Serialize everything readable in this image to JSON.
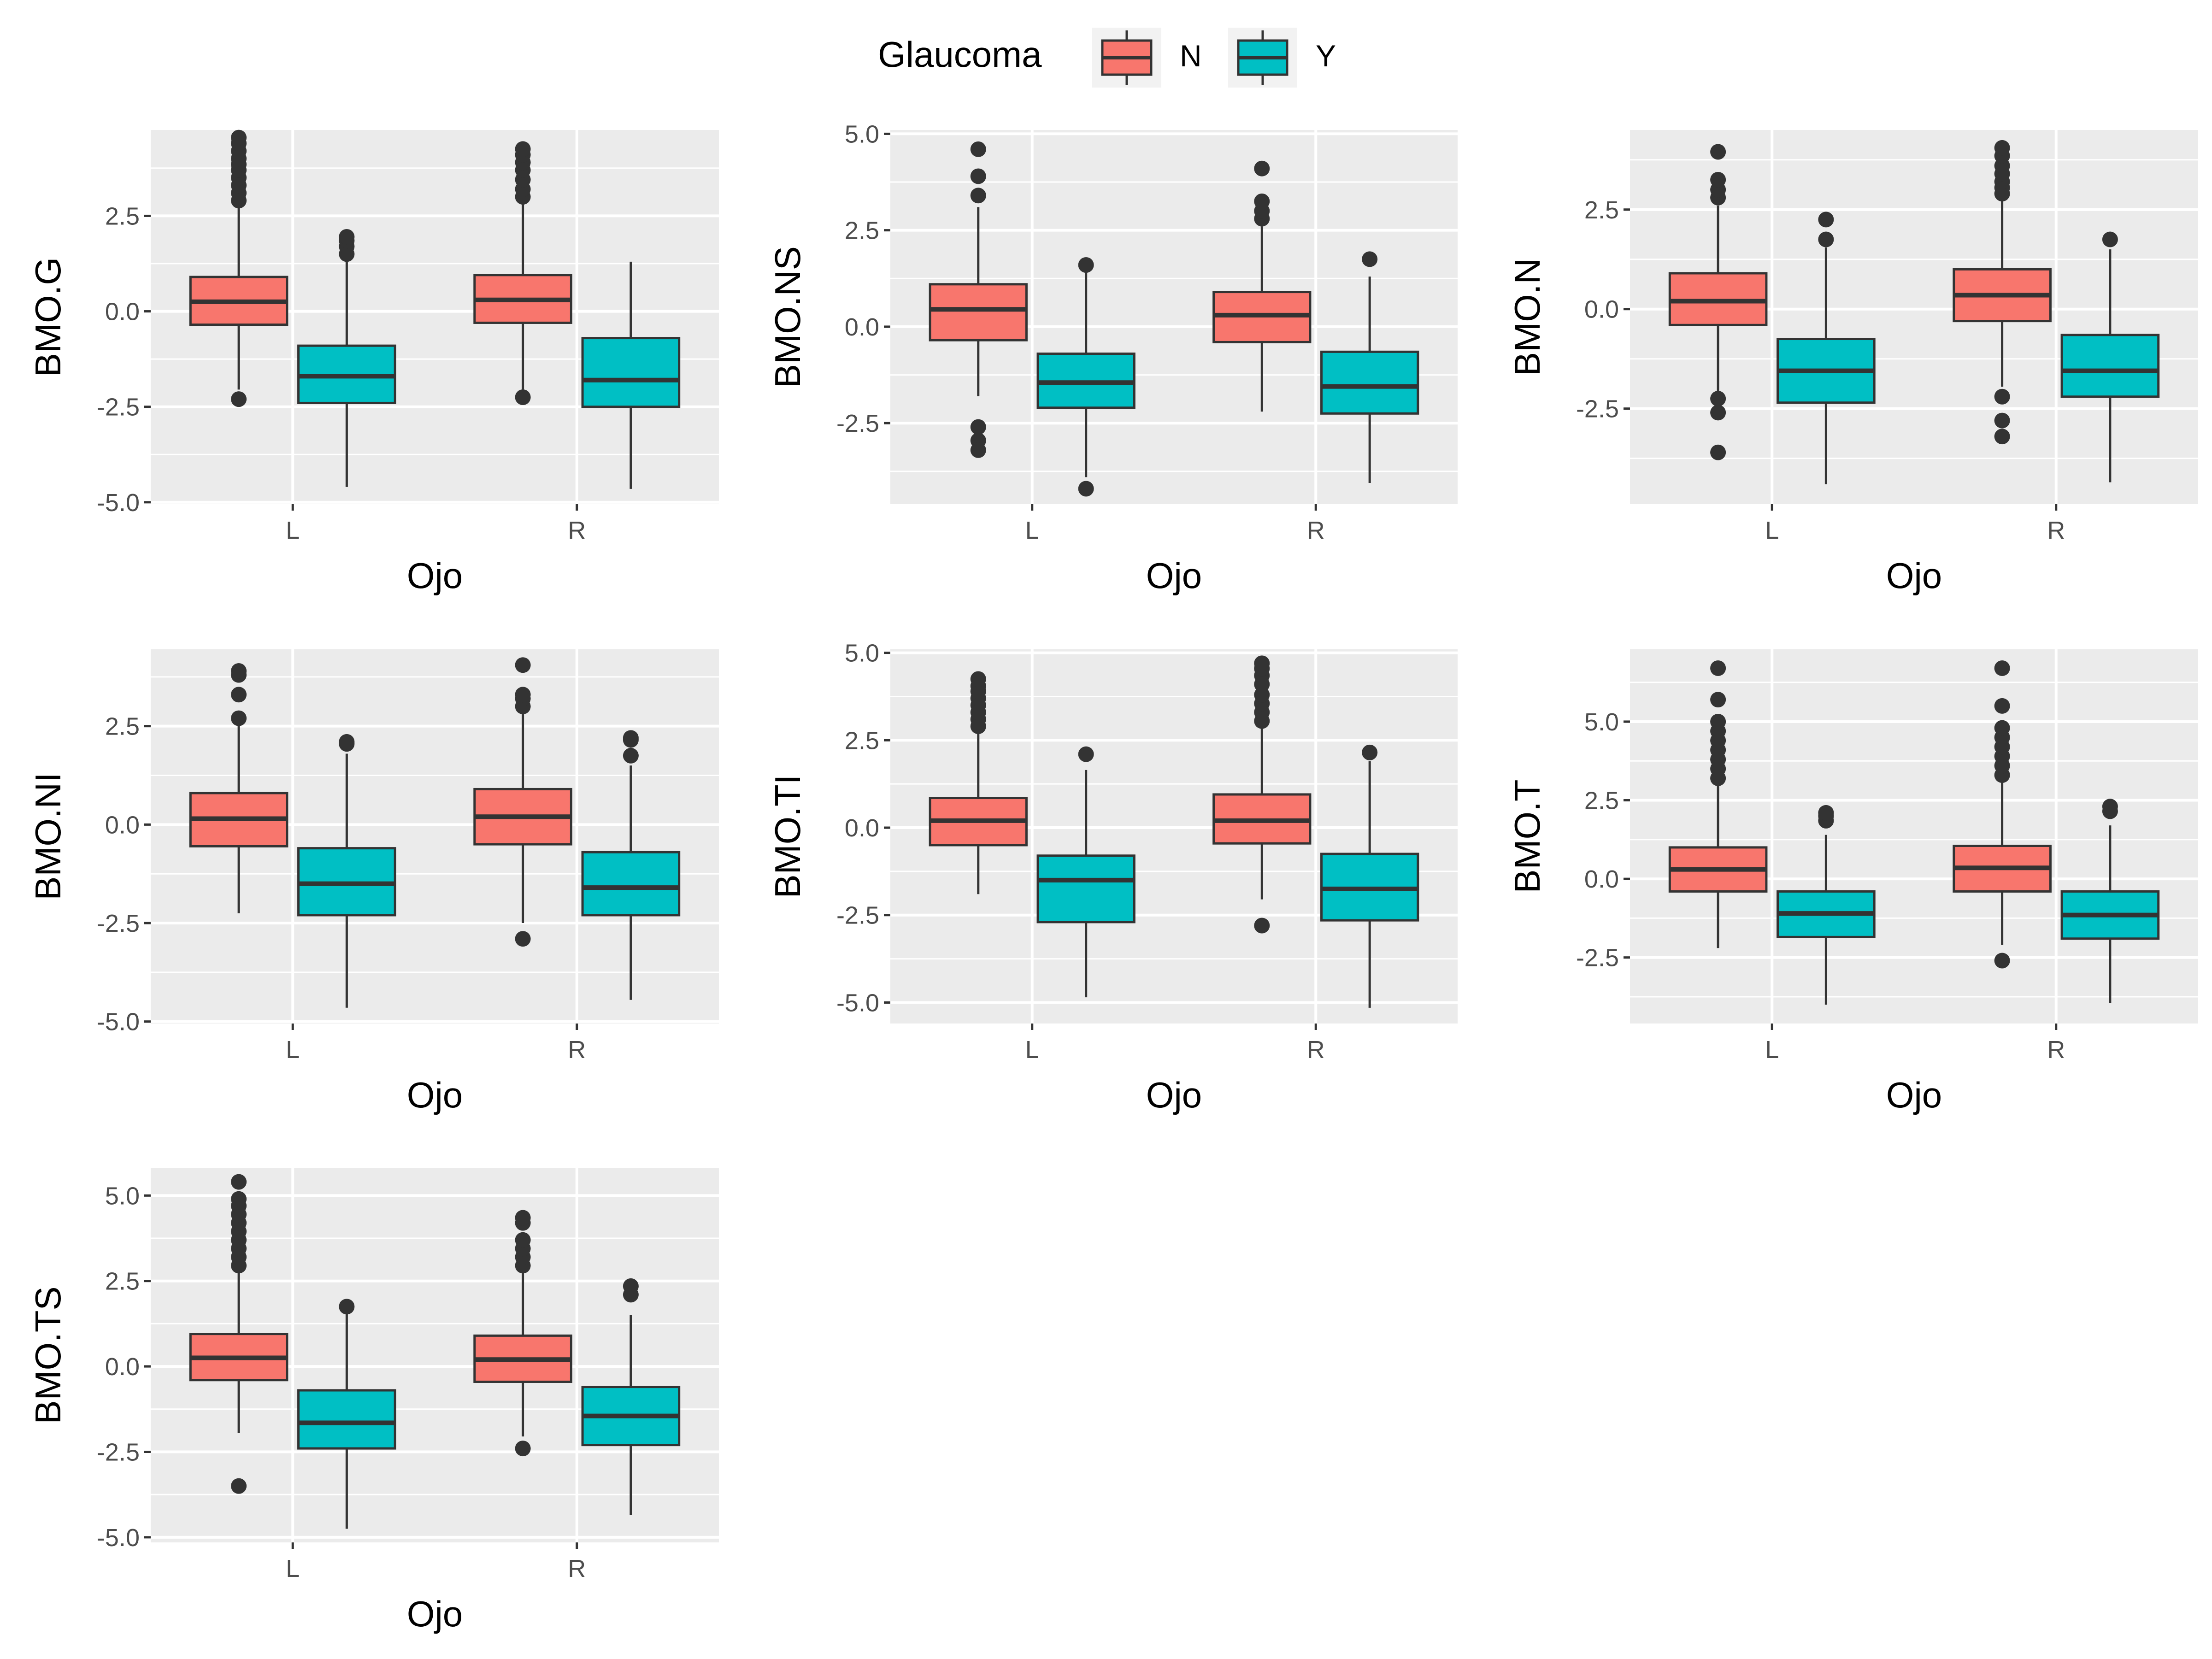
{
  "legend": {
    "title": "Glaucoma",
    "items": [
      {
        "label": "N",
        "color": "#F8766D"
      },
      {
        "label": "Y",
        "color": "#00BFC4"
      }
    ]
  },
  "chart_data": [
    {
      "type": "box",
      "ylabel": "BMO.G",
      "xlabel": "Ojo",
      "categories": [
        "L",
        "R"
      ],
      "yticks": [
        -5.0,
        -2.5,
        0.0,
        2.5
      ],
      "ylim": [
        -5.05,
        4.75
      ],
      "boxes": [
        {
          "category": "L",
          "group": "N",
          "q1": -0.35,
          "median": 0.25,
          "q3": 0.9,
          "whisker_low": -2.05,
          "whisker_high": 2.8,
          "outliers": [
            -2.3,
            2.9,
            3.1,
            3.3,
            3.5,
            3.7,
            3.85,
            4.0,
            4.2,
            4.4,
            4.55
          ]
        },
        {
          "category": "L",
          "group": "Y",
          "q1": -2.4,
          "median": -1.7,
          "q3": -0.9,
          "whisker_low": -4.6,
          "whisker_high": 1.3,
          "outliers": [
            1.5,
            1.7,
            1.85,
            1.95
          ]
        },
        {
          "category": "R",
          "group": "N",
          "q1": -0.3,
          "median": 0.3,
          "q3": 0.95,
          "whisker_low": -2.05,
          "whisker_high": 2.85,
          "outliers": [
            -2.25,
            3.0,
            3.2,
            3.45,
            3.7,
            3.9,
            4.1,
            4.25
          ]
        },
        {
          "category": "R",
          "group": "Y",
          "q1": -2.5,
          "median": -1.8,
          "q3": -0.7,
          "whisker_low": -4.65,
          "whisker_high": 1.3,
          "outliers": []
        }
      ]
    },
    {
      "type": "box",
      "ylabel": "BMO.NS",
      "xlabel": "Ojo",
      "categories": [
        "L",
        "R"
      ],
      "yticks": [
        -2.5,
        0.0,
        2.5,
        5.0
      ],
      "ylim": [
        -4.6,
        5.1
      ],
      "boxes": [
        {
          "category": "L",
          "group": "N",
          "q1": -0.35,
          "median": 0.45,
          "q3": 1.1,
          "whisker_low": -1.8,
          "whisker_high": 3.1,
          "outliers": [
            -2.6,
            -2.95,
            -3.2,
            3.4,
            3.9,
            4.6
          ]
        },
        {
          "category": "L",
          "group": "Y",
          "q1": -2.1,
          "median": -1.45,
          "q3": -0.7,
          "whisker_low": -3.9,
          "whisker_high": 1.5,
          "outliers": [
            -4.2,
            1.6
          ]
        },
        {
          "category": "R",
          "group": "N",
          "q1": -0.4,
          "median": 0.3,
          "q3": 0.9,
          "whisker_low": -2.2,
          "whisker_high": 2.6,
          "outliers": [
            2.8,
            3.0,
            3.25,
            4.1
          ]
        },
        {
          "category": "R",
          "group": "Y",
          "q1": -2.25,
          "median": -1.55,
          "q3": -0.65,
          "whisker_low": -4.05,
          "whisker_high": 1.3,
          "outliers": [
            1.75
          ]
        }
      ]
    },
    {
      "type": "box",
      "ylabel": "BMO.N",
      "xlabel": "Ojo",
      "categories": [
        "L",
        "R"
      ],
      "yticks": [
        -2.5,
        0.0,
        2.5
      ],
      "ylim": [
        -4.9,
        4.5
      ],
      "boxes": [
        {
          "category": "L",
          "group": "N",
          "q1": -0.4,
          "median": 0.2,
          "q3": 0.9,
          "whisker_low": -2.1,
          "whisker_high": 2.6,
          "outliers": [
            -2.25,
            -2.6,
            -3.6,
            2.8,
            3.0,
            3.25,
            3.95
          ]
        },
        {
          "category": "L",
          "group": "Y",
          "q1": -2.35,
          "median": -1.55,
          "q3": -0.75,
          "whisker_low": -4.4,
          "whisker_high": 1.55,
          "outliers": [
            1.75,
            2.25
          ]
        },
        {
          "category": "R",
          "group": "N",
          "q1": -0.3,
          "median": 0.35,
          "q3": 1.0,
          "whisker_low": -1.95,
          "whisker_high": 2.8,
          "outliers": [
            -2.2,
            -2.8,
            -3.2,
            2.9,
            3.05,
            3.2,
            3.4,
            3.6,
            3.85,
            4.05
          ]
        },
        {
          "category": "R",
          "group": "Y",
          "q1": -2.2,
          "median": -1.55,
          "q3": -0.65,
          "whisker_low": -4.35,
          "whisker_high": 1.5,
          "outliers": [
            1.75
          ]
        }
      ]
    },
    {
      "type": "box",
      "ylabel": "BMO.NI",
      "xlabel": "Ojo",
      "categories": [
        "L",
        "R"
      ],
      "yticks": [
        -5.0,
        -2.5,
        0.0,
        2.5
      ],
      "ylim": [
        -5.05,
        4.45
      ],
      "boxes": [
        {
          "category": "L",
          "group": "N",
          "q1": -0.55,
          "median": 0.15,
          "q3": 0.8,
          "whisker_low": -2.25,
          "whisker_high": 2.5,
          "outliers": [
            2.7,
            3.3,
            3.8,
            3.9
          ]
        },
        {
          "category": "L",
          "group": "Y",
          "q1": -2.3,
          "median": -1.5,
          "q3": -0.6,
          "whisker_low": -4.65,
          "whisker_high": 1.8,
          "outliers": [
            2.05,
            2.1
          ]
        },
        {
          "category": "R",
          "group": "N",
          "q1": -0.5,
          "median": 0.2,
          "q3": 0.9,
          "whisker_low": -2.5,
          "whisker_high": 2.8,
          "outliers": [
            -2.9,
            3.0,
            3.2,
            3.3,
            4.05
          ]
        },
        {
          "category": "R",
          "group": "Y",
          "q1": -2.3,
          "median": -1.6,
          "q3": -0.7,
          "whisker_low": -4.45,
          "whisker_high": 1.5,
          "outliers": [
            1.75,
            2.15,
            2.2
          ]
        }
      ]
    },
    {
      "type": "box",
      "ylabel": "BMO.TI",
      "xlabel": "Ojo",
      "categories": [
        "L",
        "R"
      ],
      "yticks": [
        -5.0,
        -2.5,
        0.0,
        2.5,
        5.0
      ],
      "ylim": [
        -5.6,
        5.1
      ],
      "boxes": [
        {
          "category": "L",
          "group": "N",
          "q1": -0.5,
          "median": 0.2,
          "q3": 0.85,
          "whisker_low": -1.9,
          "whisker_high": 2.75,
          "outliers": [
            2.9,
            3.1,
            3.3,
            3.5,
            3.7,
            3.9,
            4.05,
            4.25
          ]
        },
        {
          "category": "L",
          "group": "Y",
          "q1": -2.7,
          "median": -1.5,
          "q3": -0.8,
          "whisker_low": -4.85,
          "whisker_high": 1.65,
          "outliers": [
            2.1
          ]
        },
        {
          "category": "R",
          "group": "N",
          "q1": -0.45,
          "median": 0.2,
          "q3": 0.95,
          "whisker_low": -2.05,
          "whisker_high": 2.9,
          "outliers": [
            -2.8,
            3.05,
            3.3,
            3.55,
            3.8,
            4.1,
            4.35,
            4.55,
            4.7
          ]
        },
        {
          "category": "R",
          "group": "Y",
          "q1": -2.65,
          "median": -1.75,
          "q3": -0.75,
          "whisker_low": -5.15,
          "whisker_high": 1.9,
          "outliers": [
            2.15
          ]
        }
      ]
    },
    {
      "type": "box",
      "ylabel": "BMO.T",
      "xlabel": "Ojo",
      "categories": [
        "L",
        "R"
      ],
      "yticks": [
        -2.5,
        0.0,
        2.5,
        5.0
      ],
      "ylim": [
        -4.6,
        7.3
      ],
      "boxes": [
        {
          "category": "L",
          "group": "N",
          "q1": -0.4,
          "median": 0.3,
          "q3": 1.0,
          "whisker_low": -2.2,
          "whisker_high": 3.0,
          "outliers": [
            3.2,
            3.5,
            3.8,
            4.1,
            4.4,
            4.7,
            5.0,
            5.7,
            6.7
          ]
        },
        {
          "category": "L",
          "group": "Y",
          "q1": -1.85,
          "median": -1.1,
          "q3": -0.4,
          "whisker_low": -4.0,
          "whisker_high": 1.4,
          "outliers": [
            1.85,
            2.0,
            2.1
          ]
        },
        {
          "category": "R",
          "group": "N",
          "q1": -0.4,
          "median": 0.35,
          "q3": 1.05,
          "whisker_low": -2.1,
          "whisker_high": 3.1,
          "outliers": [
            -2.6,
            3.3,
            3.6,
            3.9,
            4.2,
            4.5,
            4.8,
            5.5,
            6.7
          ]
        },
        {
          "category": "R",
          "group": "Y",
          "q1": -1.9,
          "median": -1.15,
          "q3": -0.4,
          "whisker_low": -3.95,
          "whisker_high": 1.7,
          "outliers": [
            2.15,
            2.3
          ]
        }
      ]
    },
    {
      "type": "box",
      "ylabel": "BMO.TS",
      "xlabel": "Ojo",
      "categories": [
        "L",
        "R"
      ],
      "yticks": [
        -5.0,
        -2.5,
        0.0,
        2.5,
        5.0
      ],
      "ylim": [
        -5.15,
        5.8
      ],
      "boxes": [
        {
          "category": "L",
          "group": "N",
          "q1": -0.4,
          "median": 0.25,
          "q3": 0.95,
          "whisker_low": -1.95,
          "whisker_high": 2.8,
          "outliers": [
            -3.5,
            2.95,
            3.2,
            3.45,
            3.7,
            3.95,
            4.2,
            4.45,
            4.7,
            4.9,
            5.4
          ]
        },
        {
          "category": "L",
          "group": "Y",
          "q1": -2.4,
          "median": -1.65,
          "q3": -0.7,
          "whisker_low": -4.75,
          "whisker_high": 1.6,
          "outliers": [
            1.75
          ]
        },
        {
          "category": "R",
          "group": "N",
          "q1": -0.45,
          "median": 0.2,
          "q3": 0.9,
          "whisker_low": -2.05,
          "whisker_high": 2.8,
          "outliers": [
            -2.4,
            2.95,
            3.2,
            3.45,
            3.7,
            4.2,
            4.35
          ]
        },
        {
          "category": "R",
          "group": "Y",
          "q1": -2.3,
          "median": -1.45,
          "q3": -0.6,
          "whisker_low": -4.35,
          "whisker_high": 1.5,
          "outliers": [
            2.1,
            2.35
          ]
        }
      ]
    }
  ]
}
